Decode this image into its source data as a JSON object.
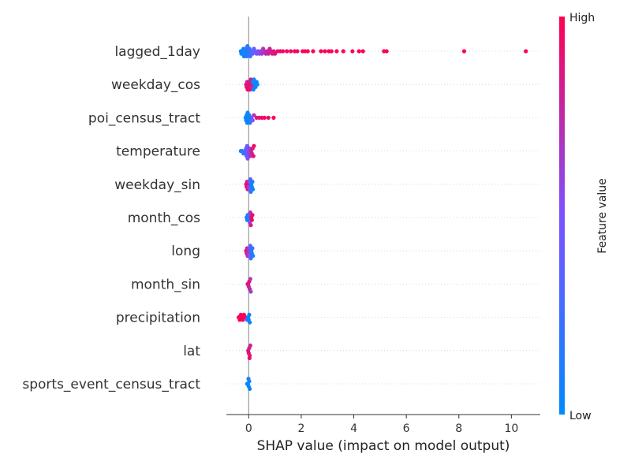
{
  "chart_data": {
    "type": "scatter",
    "title": "",
    "xlabel": "SHAP value (impact on model output)",
    "xlim": [
      -0.85,
      11.1
    ],
    "xticks": [
      0,
      2,
      4,
      6,
      8,
      10
    ],
    "grid": false,
    "legend": "colorbar-right",
    "colorbar": {
      "label": "Feature value",
      "high_label": "High",
      "low_label": "Low",
      "low_color": "#008bfb",
      "mid_color": "#7c52ff",
      "high_color": "#ff0052"
    },
    "features": [
      {
        "name": "lagged_1day",
        "points": [
          [
            -0.3,
            0.02
          ],
          [
            -0.28,
            0.03
          ],
          [
            -0.25,
            0.05
          ],
          [
            -0.22,
            0.04
          ],
          [
            -0.2,
            0.06
          ],
          [
            -0.18,
            0.05
          ],
          [
            -0.15,
            0.08
          ],
          [
            -0.12,
            0.1
          ],
          [
            -0.1,
            0.12
          ],
          [
            -0.08,
            0.14
          ],
          [
            -0.05,
            0.16
          ],
          [
            -0.02,
            0.18
          ],
          [
            0.0,
            0.2
          ],
          [
            0.03,
            0.22
          ],
          [
            0.06,
            0.25
          ],
          [
            0.1,
            0.3
          ],
          [
            0.15,
            0.35
          ],
          [
            0.2,
            0.4
          ],
          [
            0.25,
            0.42
          ],
          [
            0.3,
            0.45
          ],
          [
            0.35,
            0.5
          ],
          [
            0.4,
            0.55
          ],
          [
            0.45,
            0.6
          ],
          [
            0.5,
            0.65
          ],
          [
            0.55,
            0.7
          ],
          [
            0.6,
            0.72
          ],
          [
            0.65,
            0.75
          ],
          [
            0.7,
            0.78
          ],
          [
            0.75,
            0.8
          ],
          [
            0.8,
            0.82
          ],
          [
            0.85,
            0.84
          ],
          [
            0.9,
            0.86
          ],
          [
            0.95,
            0.88
          ],
          [
            1.0,
            0.9
          ],
          [
            1.1,
            0.92
          ],
          [
            1.2,
            0.93
          ],
          [
            1.3,
            0.94
          ],
          [
            1.45,
            0.95
          ],
          [
            1.6,
            0.96
          ],
          [
            1.75,
            0.96
          ],
          [
            1.85,
            0.97
          ],
          [
            2.05,
            0.97
          ],
          [
            2.15,
            0.98
          ],
          [
            2.25,
            0.98
          ],
          [
            2.45,
            0.98
          ],
          [
            2.75,
            0.99
          ],
          [
            2.9,
            0.99
          ],
          [
            3.05,
            0.99
          ],
          [
            3.15,
            0.99
          ],
          [
            3.35,
            1.0
          ],
          [
            3.6,
            1.0
          ],
          [
            3.95,
            1.0
          ],
          [
            4.2,
            1.0
          ],
          [
            4.35,
            1.0
          ],
          [
            5.15,
            1.0
          ],
          [
            5.25,
            1.0
          ],
          [
            8.2,
            1.0
          ],
          [
            10.55,
            1.0
          ]
        ]
      },
      {
        "name": "weekday_cos",
        "points": [
          [
            -0.1,
            0.85
          ],
          [
            -0.08,
            0.9
          ],
          [
            -0.06,
            0.8
          ],
          [
            -0.04,
            0.95
          ],
          [
            -0.02,
            0.88
          ],
          [
            0.0,
            0.92
          ],
          [
            0.02,
            0.86
          ],
          [
            0.05,
            0.9
          ],
          [
            0.08,
            0.84
          ],
          [
            0.1,
            0.9
          ],
          [
            0.12,
            0.78
          ],
          [
            0.15,
            0.1
          ],
          [
            0.18,
            0.05
          ],
          [
            0.2,
            0.08
          ],
          [
            0.23,
            0.04
          ],
          [
            0.26,
            0.06
          ],
          [
            0.3,
            0.05
          ],
          [
            0.33,
            0.03
          ]
        ]
      },
      {
        "name": "poi_census_tract",
        "points": [
          [
            -0.12,
            0.02
          ],
          [
            -0.1,
            0.03
          ],
          [
            -0.08,
            0.02
          ],
          [
            -0.06,
            0.04
          ],
          [
            -0.04,
            0.03
          ],
          [
            -0.02,
            0.05
          ],
          [
            0.0,
            0.06
          ],
          [
            0.02,
            0.08
          ],
          [
            0.05,
            0.12
          ],
          [
            0.1,
            0.3
          ],
          [
            0.15,
            0.5
          ],
          [
            0.2,
            0.7
          ],
          [
            0.3,
            0.85
          ],
          [
            0.4,
            0.9
          ],
          [
            0.5,
            0.95
          ],
          [
            0.6,
            0.96
          ],
          [
            0.75,
            0.97
          ],
          [
            0.95,
            1.0
          ]
        ]
      },
      {
        "name": "temperature",
        "points": [
          [
            -0.3,
            0.1
          ],
          [
            -0.25,
            0.15
          ],
          [
            -0.2,
            0.2
          ],
          [
            -0.15,
            0.25
          ],
          [
            -0.12,
            0.3
          ],
          [
            -0.1,
            0.35
          ],
          [
            -0.08,
            0.4
          ],
          [
            -0.06,
            0.45
          ],
          [
            -0.04,
            0.5
          ],
          [
            -0.02,
            0.55
          ],
          [
            0.0,
            0.6
          ],
          [
            0.03,
            0.65
          ],
          [
            0.06,
            0.7
          ],
          [
            0.09,
            0.75
          ],
          [
            0.12,
            0.8
          ],
          [
            0.15,
            0.85
          ],
          [
            0.18,
            0.9
          ],
          [
            0.2,
            0.95
          ]
        ]
      },
      {
        "name": "weekday_sin",
        "points": [
          [
            -0.1,
            0.85
          ],
          [
            -0.08,
            0.9
          ],
          [
            -0.06,
            0.95
          ],
          [
            -0.04,
            0.88
          ],
          [
            -0.02,
            0.92
          ],
          [
            0.0,
            0.6
          ],
          [
            0.02,
            0.5
          ],
          [
            0.04,
            0.45
          ],
          [
            0.06,
            0.3
          ],
          [
            0.08,
            0.2
          ],
          [
            0.1,
            0.1
          ],
          [
            0.12,
            0.05
          ],
          [
            0.14,
            0.08
          ],
          [
            0.16,
            0.04
          ]
        ]
      },
      {
        "name": "month_cos",
        "points": [
          [
            -0.08,
            0.05
          ],
          [
            -0.06,
            0.08
          ],
          [
            -0.04,
            0.04
          ],
          [
            -0.02,
            0.1
          ],
          [
            0.0,
            0.2
          ],
          [
            0.02,
            0.4
          ],
          [
            0.04,
            0.55
          ],
          [
            0.06,
            0.7
          ],
          [
            0.08,
            0.85
          ],
          [
            0.1,
            0.9
          ],
          [
            0.12,
            0.95
          ],
          [
            0.14,
            0.92
          ]
        ]
      },
      {
        "name": "long",
        "points": [
          [
            -0.1,
            0.9
          ],
          [
            -0.08,
            0.85
          ],
          [
            -0.06,
            0.8
          ],
          [
            -0.04,
            0.75
          ],
          [
            -0.02,
            0.7
          ],
          [
            0.0,
            0.6
          ],
          [
            0.02,
            0.55
          ],
          [
            0.04,
            0.5
          ],
          [
            0.06,
            0.4
          ],
          [
            0.08,
            0.3
          ],
          [
            0.1,
            0.2
          ],
          [
            0.12,
            0.15
          ],
          [
            0.14,
            0.1
          ],
          [
            0.16,
            0.05
          ]
        ]
      },
      {
        "name": "month_sin",
        "points": [
          [
            -0.04,
            0.85
          ],
          [
            -0.02,
            0.9
          ],
          [
            0.0,
            0.8
          ],
          [
            0.02,
            0.88
          ],
          [
            0.04,
            0.82
          ],
          [
            0.06,
            0.7
          ],
          [
            0.08,
            0.6
          ]
        ]
      },
      {
        "name": "precipitation",
        "points": [
          [
            -0.38,
            1.0
          ],
          [
            -0.34,
            1.0
          ],
          [
            -0.3,
            0.98
          ],
          [
            -0.26,
            1.0
          ],
          [
            -0.22,
            0.97
          ],
          [
            -0.18,
            1.0
          ],
          [
            -0.12,
            0.9
          ],
          [
            -0.06,
            0.2
          ],
          [
            -0.02,
            0.05
          ],
          [
            0.0,
            0.04
          ],
          [
            0.02,
            0.03
          ],
          [
            0.04,
            0.05
          ]
        ]
      },
      {
        "name": "lat",
        "points": [
          [
            -0.02,
            0.85
          ],
          [
            0.0,
            0.9
          ],
          [
            0.02,
            0.82
          ],
          [
            0.04,
            0.88
          ],
          [
            0.06,
            0.8
          ],
          [
            0.03,
            0.92
          ]
        ]
      },
      {
        "name": "sports_event_census_tract",
        "points": [
          [
            -0.06,
            0.05
          ],
          [
            -0.03,
            0.08
          ],
          [
            0.0,
            0.05
          ],
          [
            0.02,
            0.06
          ],
          [
            0.04,
            0.04
          ],
          [
            -0.01,
            0.07
          ]
        ]
      }
    ]
  }
}
